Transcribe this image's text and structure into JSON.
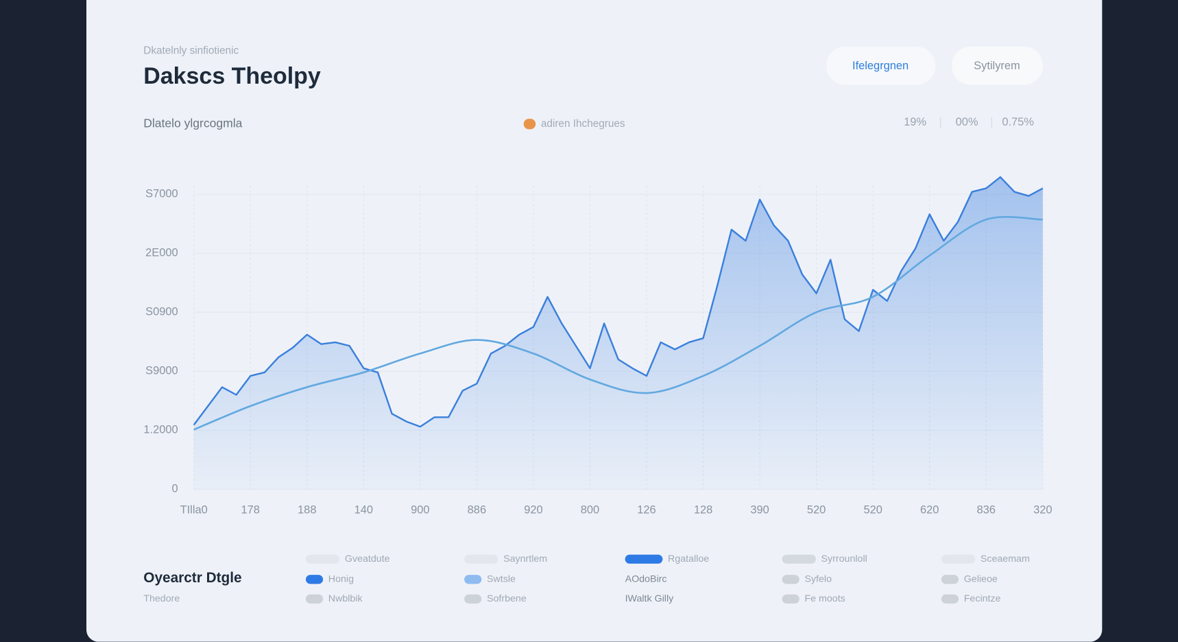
{
  "header": {
    "subtitle": "Dkatelnly sinfiotienic",
    "title": "Dakscs Theolpy",
    "tabs": [
      "Ifelegrgnen",
      "Sytilyrem"
    ]
  },
  "chart_header": {
    "subtitle": "Dlatelo ylgrcogmla",
    "badge": {
      "label": "adiren Ihchegrues",
      "color": "#e8954a"
    },
    "stats": [
      "19%",
      "00%",
      "0.75%"
    ]
  },
  "chart_data": {
    "type": "line",
    "grid": true,
    "xlim": [
      0,
      15
    ],
    "xticks": [
      {
        "value": 0,
        "label": "TIlla0"
      },
      {
        "value": 1,
        "label": "178"
      },
      {
        "value": 2,
        "label": "188"
      },
      {
        "value": 3,
        "label": "140"
      },
      {
        "value": 4,
        "label": "900"
      },
      {
        "value": 5,
        "label": "886"
      },
      {
        "value": 6,
        "label": "920"
      },
      {
        "value": 7,
        "label": "800"
      },
      {
        "value": 8,
        "label": "126"
      },
      {
        "value": 9,
        "label": "128"
      },
      {
        "value": 10,
        "label": "390"
      },
      {
        "value": 11,
        "label": "520"
      },
      {
        "value": 12,
        "label": "520"
      },
      {
        "value": 13,
        "label": "620"
      },
      {
        "value": 14,
        "label": "836"
      },
      {
        "value": 15,
        "label": "320"
      }
    ],
    "ylim": [
      0,
      5.4
    ],
    "yticks": [
      0,
      {
        "value": 1,
        "label": "1.2000"
      },
      {
        "value": 2,
        "label": "S9000"
      },
      {
        "value": 3,
        "label": "S0900"
      },
      {
        "value": 4,
        "label": "2E000"
      },
      {
        "value": 5,
        "label": "S7000"
      }
    ],
    "series": [
      {
        "color": "#3a7fdc",
        "fill": true,
        "x": [
          0,
          0.25,
          0.5,
          0.75,
          1,
          1.25,
          1.5,
          1.75,
          2,
          2.25,
          2.5,
          2.75,
          3,
          3.25,
          3.5,
          3.75,
          4,
          4.25,
          4.5,
          4.75,
          5,
          5.25,
          5.5,
          5.75,
          6,
          6.25,
          6.5,
          6.75,
          7,
          7.25,
          7.5,
          7.75,
          8,
          8.25,
          8.5,
          8.75,
          9,
          9.25,
          9.5,
          9.75,
          10,
          10.25,
          10.5,
          10.75,
          11,
          11.25,
          11.5,
          11.75,
          12,
          12.25,
          12.5,
          12.75,
          13,
          13.25,
          13.5,
          13.75,
          14,
          14.25,
          14.5,
          14.75,
          15
        ],
        "values": [
          1.09,
          1.41,
          1.73,
          1.6,
          1.92,
          1.98,
          2.24,
          2.4,
          2.62,
          2.46,
          2.49,
          2.43,
          2.05,
          1.98,
          1.28,
          1.15,
          1.06,
          1.22,
          1.22,
          1.67,
          1.79,
          2.3,
          2.43,
          2.62,
          2.75,
          3.26,
          2.81,
          2.43,
          2.05,
          2.81,
          2.2,
          2.05,
          1.92,
          2.49,
          2.37,
          2.49,
          2.56,
          3.45,
          4.4,
          4.21,
          4.91,
          4.47,
          4.21,
          3.64,
          3.32,
          3.89,
          2.88,
          2.68,
          3.38,
          3.19,
          3.7,
          4.08,
          4.66,
          4.21,
          4.53,
          5.04,
          5.1,
          5.29,
          5.04,
          4.97,
          5.1
        ]
      },
      {
        "color": "#62a8e0",
        "fill": false,
        "x": [
          0,
          1,
          2,
          3,
          4,
          5,
          6,
          7,
          8,
          9,
          10,
          11,
          12,
          13,
          14,
          15
        ],
        "values": [
          1.01,
          1.41,
          1.73,
          1.98,
          2.3,
          2.53,
          2.3,
          1.86,
          1.63,
          1.92,
          2.43,
          3.0,
          3.26,
          3.96,
          4.57,
          4.57
        ]
      }
    ]
  },
  "summary": {
    "title": "Oyearctr Dtgle",
    "subtitle": "Thedore",
    "rows": [
      [
        {
          "label": "Gveatdute",
          "color": "#e3e7ed"
        },
        {
          "label": "Saynrtlem",
          "color": "#e3e7ed"
        },
        {
          "label": "Rgatalloe",
          "color": "#2f7be6"
        },
        {
          "label": "Syrrounloll",
          "color": "#d4d8df"
        },
        {
          "label": "Sceaemam",
          "color": "#e3e7ed"
        }
      ],
      [
        {
          "label": "Honig",
          "color": "#2f7be6"
        },
        {
          "label": "Swtsle",
          "color": "#8fbcf0"
        },
        {
          "label": "AOdoBirc"
        },
        {
          "label": "Syfelo",
          "color": "#cdd1d8"
        },
        {
          "label": "Gelieoe",
          "color": "#cdd1d8"
        }
      ],
      [
        {
          "label": "Nwblbik",
          "color": "#cdd1d8"
        },
        {
          "label": "Sofrbene",
          "color": "#cdd1d8"
        },
        {
          "label": "IWaltk Gilly"
        },
        {
          "label": "Fe moots",
          "color": "#cdd1d8"
        },
        {
          "label": "Fecintze",
          "color": "#cdd1d8"
        }
      ]
    ]
  }
}
